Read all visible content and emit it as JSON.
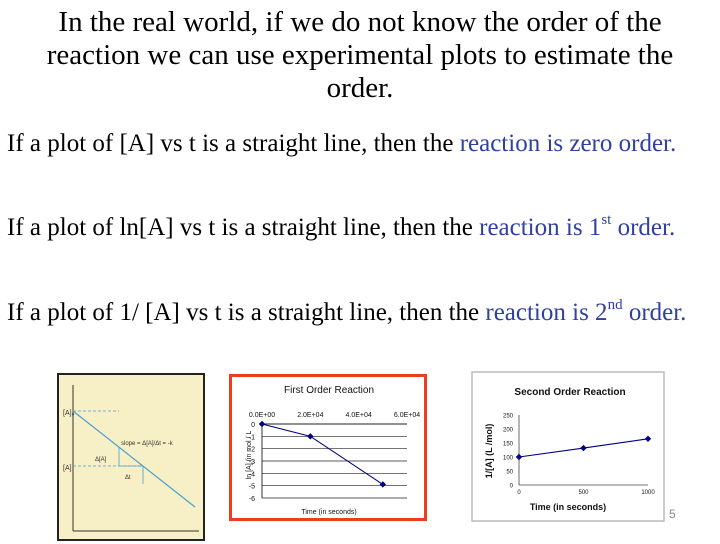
{
  "slide": {
    "title": "In the real world, if we do not know the order of the reaction we can use experimental plots to estimate the order.",
    "paragraphs": [
      {
        "lead": "If a plot of [A] vs t is a straight line, then the ",
        "highlight": "reaction is zero order.",
        "superscript": "",
        "tail": ""
      },
      {
        "lead": "If a plot of ln[A] vs t is a straight line, then the ",
        "highlight": "reaction is 1",
        "superscript": "st",
        "tail": " order."
      },
      {
        "lead": "If a plot of 1/ [A] vs t is a straight line, then the ",
        "highlight": "reaction is 2",
        "superscript": "nd",
        "tail": " order."
      }
    ],
    "page_number": "5",
    "colors": {
      "highlight": "#2f3fa2",
      "plot_line": "#000080",
      "figure_border": "#e8401c"
    }
  },
  "chart_data": [
    {
      "type": "line",
      "title": "",
      "ylabels": [
        "[A]₀",
        "[A]"
      ],
      "annotations": [
        "slope = Δ[A]/Δt = -k",
        "Δ[A]",
        "Δt"
      ]
    },
    {
      "type": "line",
      "title": "First Order Reaction",
      "xlabel": "Time (in seconds)",
      "ylabel": "ln [A] (in mol / L",
      "x_tick_labels": [
        "0.0E+00",
        "2.0E+04",
        "4.0E+04",
        "6.0E+04"
      ],
      "y_tick_labels": [
        "0",
        "-1",
        "-2",
        "-3",
        "-4",
        "-5",
        "-6"
      ],
      "xlim": [
        0,
        60000
      ],
      "ylim": [
        -6,
        0
      ],
      "series": [
        {
          "x": [
            0,
            20000,
            50000
          ],
          "y": [
            0,
            -1,
            -4.9
          ]
        }
      ]
    },
    {
      "type": "line",
      "title": "Second Order Reaction",
      "xlabel": "Time (in seconds)",
      "ylabel": "1/[A] (L /mol)",
      "x_tick_labels": [
        "0",
        "500",
        "1000"
      ],
      "y_tick_labels": [
        "250",
        "200",
        "150",
        "100",
        "50",
        "0"
      ],
      "xlim": [
        0,
        1000
      ],
      "ylim": [
        0,
        250
      ],
      "series": [
        {
          "x": [
            0,
            500,
            1000
          ],
          "y": [
            100,
            132,
            165
          ]
        }
      ]
    }
  ]
}
